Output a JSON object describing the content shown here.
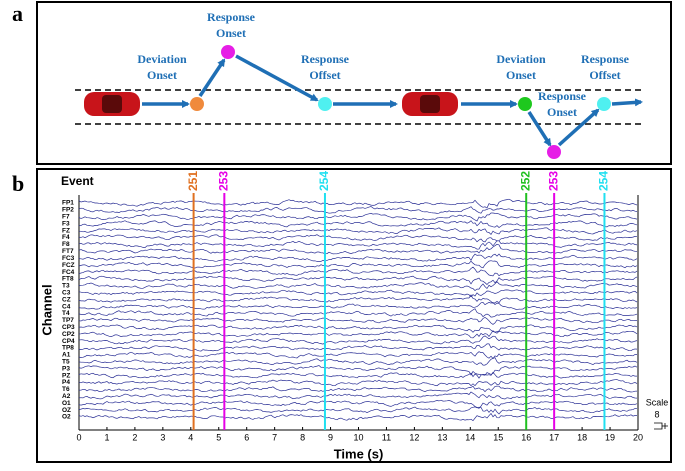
{
  "panel_a": {
    "label": "a",
    "nodes": [
      {
        "lines": [
          "Deviation",
          "Onset"
        ],
        "color": "#f08a3c"
      },
      {
        "lines": [
          "Response",
          "Onset"
        ],
        "color": "#e61ee6"
      },
      {
        "lines": [
          "Response",
          "Offset"
        ],
        "color": "#4ff0f0"
      },
      {
        "lines": [
          "Deviation",
          "Onset"
        ],
        "color": "#1ec81e"
      },
      {
        "lines": [
          "Response",
          "Onset"
        ],
        "color": "#e61ee6"
      },
      {
        "lines": [
          "Response",
          "Offset"
        ],
        "color": "#4ff0f0"
      }
    ]
  },
  "chart_data": {
    "type": "eeg",
    "panel_label": "b",
    "x_label": "Time (s)",
    "y_label": "Channel",
    "event_label": "Event",
    "categories": [
      "FP1",
      "FP2",
      "F7",
      "F3",
      "FZ",
      "F4",
      "F8",
      "FT7",
      "FC3",
      "FCZ",
      "FC4",
      "FT8",
      "T3",
      "C3",
      "CZ",
      "C4",
      "T4",
      "TP7",
      "CP3",
      "CP2",
      "CP4",
      "TP8",
      "A1",
      "T5",
      "P3",
      "PZ",
      "P4",
      "T6",
      "A2",
      "O1",
      "OZ",
      "O2"
    ],
    "events": [
      {
        "x": 4.1,
        "code": 251,
        "color": "#e07020"
      },
      {
        "x": 5.2,
        "code": 253,
        "color": "#e600e6"
      },
      {
        "x": 8.8,
        "code": 254,
        "color": "#20e0f0"
      },
      {
        "x": 16,
        "code": 252,
        "color": "#20c020"
      },
      {
        "x": 17,
        "code": 253,
        "color": "#e600e6"
      },
      {
        "x": 18.8,
        "code": 254,
        "color": "#20e0f0"
      }
    ],
    "xlim": [
      0,
      20
    ],
    "xticks": [
      0,
      1,
      2,
      3,
      4,
      5,
      6,
      7,
      8,
      9,
      10,
      11,
      12,
      13,
      14,
      15,
      16,
      17,
      18,
      19,
      20
    ],
    "trace_color": "#2a2f95",
    "scale_label": "Scale",
    "scale_value": 8
  }
}
